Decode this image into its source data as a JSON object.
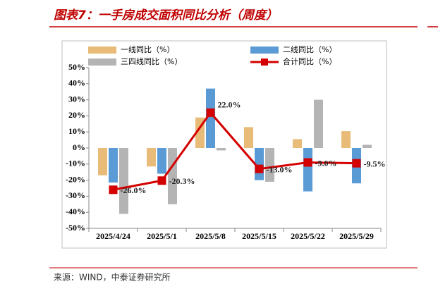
{
  "title": "图表7：一手房成交面积同比分析（周度）",
  "source": "来源：WIND，中泰证券研究所",
  "chart_data": {
    "type": "bar",
    "categories": [
      "2025/4/24",
      "2025/5/1",
      "2025/5/8",
      "2025/5/15",
      "2025/5/22",
      "2025/5/29"
    ],
    "series": [
      {
        "name": "一线同比（%）",
        "color": "#e8bc78",
        "values": [
          -17,
          -11.5,
          19,
          13,
          5.5,
          10.5
        ]
      },
      {
        "name": "二线同比（%）",
        "color": "#5b9bd5",
        "values": [
          -21.5,
          -16,
          37,
          -20,
          -27,
          -22
        ]
      },
      {
        "name": "三四线同比（%）",
        "color": "#b4b4b4",
        "values": [
          -41,
          -35,
          -1.5,
          -21,
          30,
          2
        ]
      },
      {
        "name": "合计同比（%）",
        "color": "#d40000",
        "type": "line",
        "values": [
          -26.0,
          -20.3,
          22.0,
          -13.0,
          -9.0,
          -9.5
        ],
        "value_labels": [
          "-26.0%",
          "-20.3%",
          "22.0%",
          "-13.0%",
          "-9.0%",
          "-9.5%"
        ]
      }
    ],
    "ylim": [
      -50,
      50
    ],
    "yticks": [
      {
        "value": -50,
        "label": "-50%"
      },
      {
        "value": -40,
        "label": "-40%"
      },
      {
        "value": -30,
        "label": "-30%"
      },
      {
        "value": -20,
        "label": "-20%"
      },
      {
        "value": -10,
        "label": "-10%"
      },
      {
        "value": 0,
        "label": "0%"
      },
      {
        "value": 10,
        "label": "10%"
      },
      {
        "value": 20,
        "label": "20%"
      },
      {
        "value": 30,
        "label": "30%"
      },
      {
        "value": 40,
        "label": "40%"
      },
      {
        "value": 50,
        "label": "50%"
      }
    ]
  }
}
